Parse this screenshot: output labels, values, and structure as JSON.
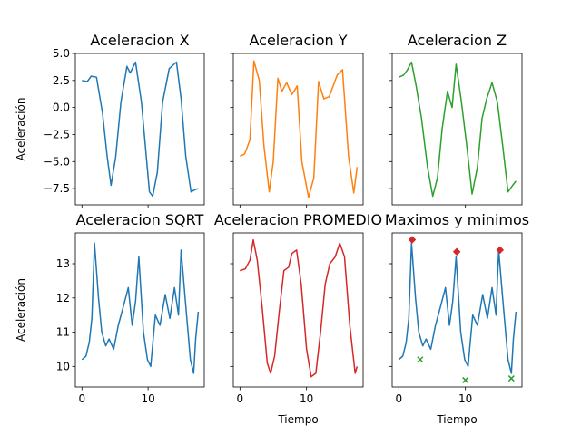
{
  "chart_data": [
    {
      "type": "line",
      "title": "Aceleracion X",
      "xlabel": "",
      "ylabel": "Aceleración",
      "color": "#1f77b4",
      "xlim": [
        -1,
        18.5
      ],
      "ylim": [
        -9,
        5
      ],
      "yticks": [
        5.0,
        2.5,
        0.0,
        -2.5,
        -5.0,
        -7.5
      ],
      "ytick_labels": [
        "5.0",
        "2.5",
        "0.0",
        "−2.5",
        "−5.0",
        "−7.5"
      ],
      "xticks": [
        0,
        10
      ],
      "xtick_labels": [],
      "series": [
        {
          "x": [
            0,
            0.8,
            1.4,
            2.2,
            3.1,
            3.8,
            4.4,
            5.1,
            5.9,
            6.8,
            7.3,
            8.1,
            9.0,
            10.2,
            10.7,
            11.4,
            12.2,
            13.2,
            14.3,
            15.0,
            15.7,
            16.5,
            17.1,
            17.6
          ],
          "y": [
            2.5,
            2.4,
            2.9,
            2.8,
            -0.5,
            -4.5,
            -7.2,
            -4.6,
            0.5,
            3.8,
            3.2,
            4.2,
            0.5,
            -7.8,
            -8.2,
            -6.0,
            0.5,
            3.6,
            4.2,
            0.8,
            -4.5,
            -7.8,
            -7.6,
            -7.5
          ]
        }
      ]
    },
    {
      "type": "line",
      "title": "Aceleracion Y",
      "xlabel": "",
      "ylabel": "",
      "color": "#ff7f0e",
      "xlim": [
        -1,
        18.5
      ],
      "ylim": [
        -9,
        5
      ],
      "yticks": [
        5.0,
        2.5,
        0.0,
        -2.5,
        -5.0,
        -7.5
      ],
      "ytick_labels": [],
      "xticks": [
        0,
        10
      ],
      "xtick_labels": [],
      "series": [
        {
          "x": [
            0,
            0.7,
            1.5,
            2.1,
            2.9,
            3.6,
            4.4,
            5.0,
            5.7,
            6.3,
            7.0,
            7.8,
            8.6,
            9.3,
            10.3,
            11.1,
            11.8,
            12.6,
            13.4,
            14.6,
            15.4,
            16.3,
            17.1,
            17.6
          ],
          "y": [
            -4.5,
            -4.3,
            -3.0,
            4.3,
            2.5,
            -3.5,
            -7.8,
            -5.0,
            2.7,
            1.5,
            2.3,
            1.2,
            2.0,
            -5.0,
            -8.3,
            -6.5,
            2.4,
            0.8,
            1.0,
            3.0,
            3.5,
            -4.5,
            -7.9,
            -5.5
          ]
        }
      ]
    },
    {
      "type": "line",
      "title": "Aceleracion Z",
      "xlabel": "",
      "ylabel": "",
      "color": "#2ca02c",
      "xlim": [
        -1,
        18.5
      ],
      "ylim": [
        -9,
        5
      ],
      "yticks": [
        5.0,
        2.5,
        0.0,
        -2.5,
        -5.0,
        -7.5
      ],
      "ytick_labels": [],
      "xticks": [
        0,
        10
      ],
      "xtick_labels": [],
      "series": [
        {
          "x": [
            0,
            0.7,
            1.3,
            1.9,
            2.6,
            3.4,
            4.3,
            5.1,
            5.8,
            6.5,
            7.3,
            8.0,
            8.6,
            9.4,
            10.2,
            11.0,
            11.8,
            12.5,
            13.2,
            14.0,
            14.8,
            15.6,
            16.4,
            17.1,
            17.6
          ],
          "y": [
            2.8,
            3.0,
            3.5,
            4.2,
            2.0,
            -1.0,
            -5.5,
            -8.2,
            -6.5,
            -2.0,
            1.5,
            0.0,
            4.0,
            0.5,
            -3.5,
            -8.0,
            -5.5,
            -1.0,
            0.8,
            2.3,
            0.5,
            -3.5,
            -7.8,
            -7.2,
            -6.8
          ]
        }
      ]
    },
    {
      "type": "line",
      "title": "Aceleracion SQRT",
      "xlabel": "",
      "ylabel": "Aceleración",
      "color": "#1f77b4",
      "xlim": [
        -1,
        18.5
      ],
      "ylim": [
        9.4,
        13.9
      ],
      "yticks": [
        10,
        11,
        12,
        13
      ],
      "ytick_labels": [
        "10",
        "11",
        "12",
        "13"
      ],
      "xticks": [
        0,
        10
      ],
      "xtick_labels": [
        "0",
        "10"
      ],
      "series": [
        {
          "x": [
            0,
            0.6,
            1.1,
            1.5,
            1.9,
            2.5,
            3.0,
            3.6,
            4.1,
            4.8,
            5.5,
            6.2,
            7.0,
            7.6,
            8.1,
            8.6,
            9.3,
            9.9,
            10.4,
            11.1,
            11.8,
            12.6,
            13.3,
            14.0,
            14.6,
            15.0,
            15.6,
            16.4,
            16.9,
            17.2,
            17.6
          ],
          "y": [
            10.2,
            10.3,
            10.7,
            11.4,
            13.6,
            12.0,
            11.0,
            10.6,
            10.8,
            10.5,
            11.2,
            11.7,
            12.3,
            11.2,
            11.9,
            13.2,
            11.0,
            10.2,
            10.0,
            11.5,
            11.2,
            12.1,
            11.4,
            12.3,
            11.5,
            13.4,
            12.0,
            10.2,
            9.8,
            10.8,
            11.6
          ]
        }
      ]
    },
    {
      "type": "line",
      "title": "Aceleracion PROMEDIO",
      "xlabel": "Tiempo",
      "ylabel": "",
      "color": "#d62728",
      "xlim": [
        -1,
        18.5
      ],
      "ylim": [
        9.4,
        13.9
      ],
      "yticks": [
        10,
        11,
        12,
        13
      ],
      "ytick_labels": [],
      "xticks": [
        0,
        10
      ],
      "xtick_labels": [
        "0",
        "10"
      ],
      "series": [
        {
          "x": [
            0,
            0.8,
            1.5,
            2.0,
            2.6,
            3.3,
            4.1,
            4.6,
            5.2,
            5.9,
            6.6,
            7.3,
            7.8,
            8.5,
            9.2,
            10.0,
            10.7,
            11.4,
            12.1,
            12.8,
            13.5,
            14.3,
            15.0,
            15.7,
            16.5,
            17.3,
            17.6
          ],
          "y": [
            12.8,
            12.85,
            13.1,
            13.7,
            13.1,
            11.8,
            10.1,
            9.8,
            10.3,
            11.6,
            12.8,
            12.9,
            13.3,
            13.4,
            12.4,
            10.5,
            9.7,
            9.8,
            11.0,
            12.4,
            13.0,
            13.2,
            13.6,
            13.2,
            11.2,
            9.8,
            10.0
          ]
        }
      ]
    },
    {
      "type": "line",
      "title": "Maximos y minimos",
      "xlabel": "Tiempo",
      "ylabel": "",
      "color": "#1f77b4",
      "xlim": [
        -1,
        18.5
      ],
      "ylim": [
        9.4,
        13.9
      ],
      "yticks": [
        10,
        11,
        12,
        13
      ],
      "ytick_labels": [],
      "xticks": [
        0,
        10
      ],
      "xtick_labels": [
        "0",
        "10"
      ],
      "series": [
        {
          "x": [
            0,
            0.6,
            1.1,
            1.5,
            1.9,
            2.5,
            3.0,
            3.6,
            4.1,
            4.8,
            5.5,
            6.2,
            7.0,
            7.6,
            8.1,
            8.6,
            9.3,
            9.9,
            10.4,
            11.1,
            11.8,
            12.6,
            13.3,
            14.0,
            14.6,
            15.0,
            15.6,
            16.4,
            16.9,
            17.2,
            17.6
          ],
          "y": [
            10.2,
            10.3,
            10.7,
            11.4,
            13.6,
            12.0,
            11.0,
            10.6,
            10.8,
            10.5,
            11.2,
            11.7,
            12.3,
            11.2,
            11.9,
            13.2,
            11.0,
            10.2,
            10.0,
            11.5,
            11.2,
            12.1,
            11.4,
            12.3,
            11.5,
            13.4,
            12.0,
            10.2,
            9.8,
            10.8,
            11.6
          ]
        }
      ],
      "maxima": {
        "x": [
          2.0,
          8.7,
          15.2
        ],
        "y": [
          13.7,
          13.35,
          13.4
        ],
        "color": "#d62728",
        "marker": "diamond"
      },
      "minima": {
        "x": [
          3.2,
          10.0,
          16.9
        ],
        "y": [
          10.2,
          9.6,
          9.65
        ],
        "color": "#2ca02c",
        "marker": "x"
      }
    }
  ]
}
